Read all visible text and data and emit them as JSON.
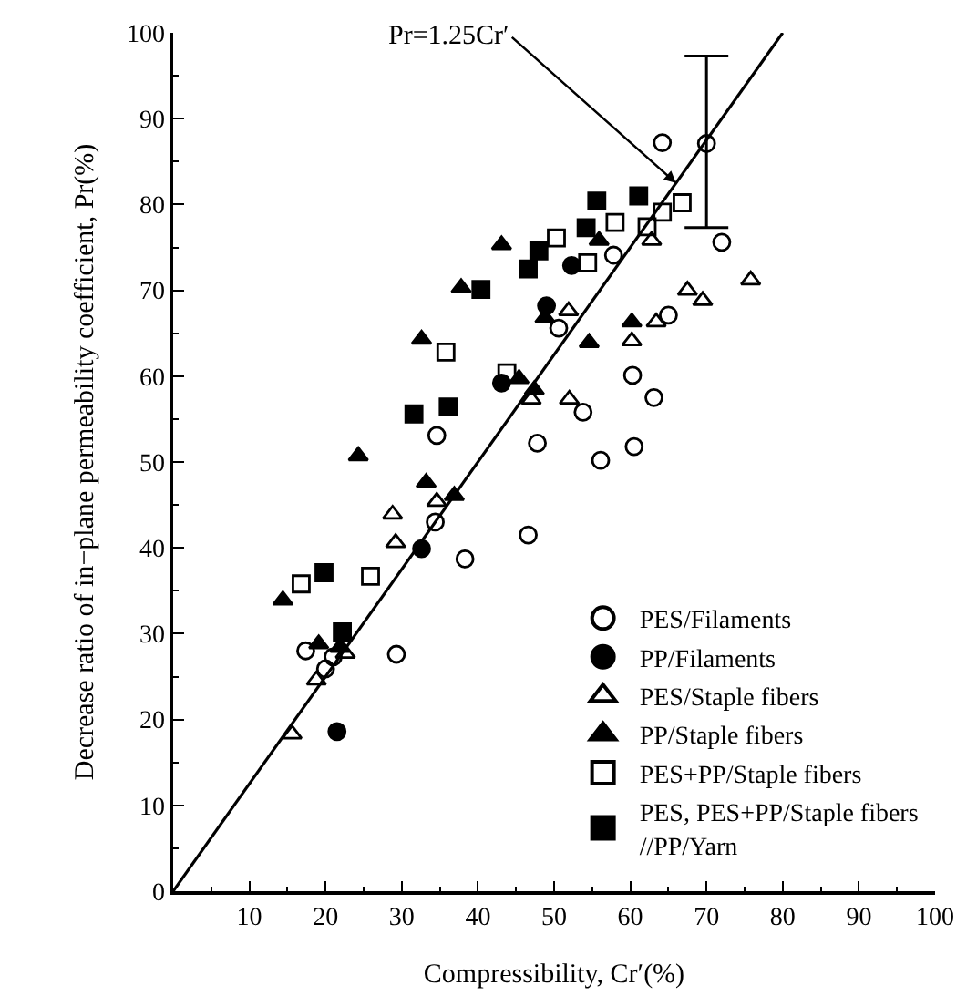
{
  "chart_data": {
    "type": "scatter",
    "xlabel": "Compressibility, Cr′(%)",
    "ylabel": "Decrease ratio of in−plane permeability coefficient, Pr(%)",
    "xlim": [
      0,
      100
    ],
    "xticks": [
      10,
      20,
      30,
      40,
      50,
      60,
      70,
      80,
      90,
      100
    ],
    "ylim": [
      0,
      100
    ],
    "yticks": [
      0,
      10,
      20,
      30,
      40,
      50,
      60,
      70,
      80,
      90,
      100
    ],
    "legend": "bottom right",
    "annotations": [
      {
        "text": "Pr=1.25Cr′",
        "x": 66,
        "y": 82.5
      }
    ],
    "series": [
      {
        "name": "PES/Filaments",
        "color": "#000000",
        "marker": "circle-open",
        "x": [
          64.2,
          70.0,
          72.0,
          57.8,
          50.6,
          65.0,
          60.3,
          63.1,
          53.8,
          34.6,
          47.8,
          60.5,
          56.1,
          46.6,
          38.3,
          34.4,
          29.3,
          17.4,
          20.0,
          21.0
        ],
        "values": [
          87.2,
          87.1,
          75.6,
          74.1,
          65.6,
          67.1,
          60.1,
          57.5,
          55.8,
          53.1,
          52.2,
          51.8,
          50.2,
          41.5,
          38.7,
          43.0,
          27.6,
          28.0,
          25.9,
          27.3
        ],
        "errors": [
          null,
          [
            77.3,
            97.3
          ],
          null,
          null,
          null,
          null,
          null,
          null,
          null,
          null,
          null,
          null,
          null,
          null,
          null,
          null,
          null,
          null,
          null,
          null
        ]
      },
      {
        "name": "PP/Filaments",
        "color": "#000000",
        "marker": "circle",
        "x": [
          52.3,
          49.0,
          43.1,
          32.6,
          21.5
        ],
        "values": [
          72.9,
          68.2,
          59.2,
          39.9,
          18.6
        ]
      },
      {
        "name": "PES/Staple fibers",
        "color": "#000000",
        "marker": "triangle-open",
        "x": [
          62.8,
          67.5,
          69.5,
          75.8,
          51.9,
          63.4,
          60.2,
          47.0,
          52.0,
          28.8,
          29.2,
          34.6,
          22.6,
          18.8,
          15.6
        ],
        "values": [
          75.8,
          70.0,
          68.8,
          71.2,
          67.6,
          66.3,
          64.1,
          57.3,
          57.3,
          43.9,
          40.6,
          45.4,
          27.7,
          24.6,
          18.3
        ]
      },
      {
        "name": "PP/Staple fibers",
        "color": "#000000",
        "marker": "triangle",
        "x": [
          43.1,
          55.9,
          37.8,
          48.8,
          60.2,
          54.6,
          45.4,
          47.4,
          32.6,
          24.3,
          33.2,
          36.9,
          14.4,
          19.1,
          21.9
        ],
        "values": [
          75.3,
          75.8,
          70.3,
          66.8,
          66.3,
          63.9,
          59.7,
          58.4,
          64.3,
          50.7,
          47.6,
          46.1,
          33.9,
          28.8,
          28.4
        ]
      },
      {
        "name": "PES+PP/Staple fibers",
        "color": "#000000",
        "marker": "square-open",
        "x": [
          66.8,
          64.2,
          62.2,
          58.0,
          50.3,
          54.4,
          43.8,
          35.8,
          16.8,
          25.9
        ],
        "values": [
          80.2,
          79.1,
          77.4,
          77.9,
          76.1,
          73.2,
          60.4,
          62.8,
          35.8,
          36.7
        ]
      },
      {
        "name": "PES, PES+PP/Staple fibers\n//PP/Yarn",
        "color": "#000000",
        "marker": "square",
        "x": [
          55.6,
          61.1,
          54.2,
          48.0,
          46.6,
          40.4,
          31.6,
          36.1,
          19.8,
          22.2
        ],
        "values": [
          80.4,
          81.0,
          77.3,
          74.6,
          72.5,
          70.1,
          55.6,
          56.4,
          37.1,
          30.2
        ]
      },
      {
        "type": "line",
        "color": "#000000",
        "marker": "none",
        "line_style": "solid",
        "x": [
          0,
          80
        ],
        "values": [
          0,
          100
        ]
      }
    ]
  }
}
